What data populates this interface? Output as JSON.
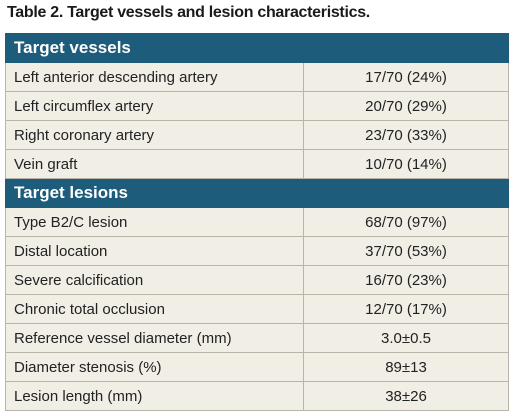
{
  "title": "Table 2. Target vessels and lesion characteristics.",
  "sections": [
    {
      "heading": "Target vessels",
      "rows": [
        [
          "Left anterior descending artery",
          "17/70 (24%)"
        ],
        [
          "Left circumflex artery",
          "20/70 (29%)"
        ],
        [
          "Right coronary artery",
          "23/70 (33%)"
        ],
        [
          "Vein graft",
          "10/70 (14%)"
        ]
      ]
    },
    {
      "heading": "Target lesions",
      "rows": [
        [
          "Type B2/C lesion",
          "68/70 (97%)"
        ],
        [
          "Distal location",
          "37/70 (53%)"
        ],
        [
          "Severe calcification",
          "16/70 (23%)"
        ],
        [
          "Chronic total occlusion",
          "12/70 (17%)"
        ],
        [
          "Reference vessel diameter (mm)",
          "3.0±0.5"
        ],
        [
          "Diameter stenosis (%)",
          "89±13"
        ],
        [
          "Lesion length (mm)",
          "38±26"
        ]
      ]
    }
  ]
}
